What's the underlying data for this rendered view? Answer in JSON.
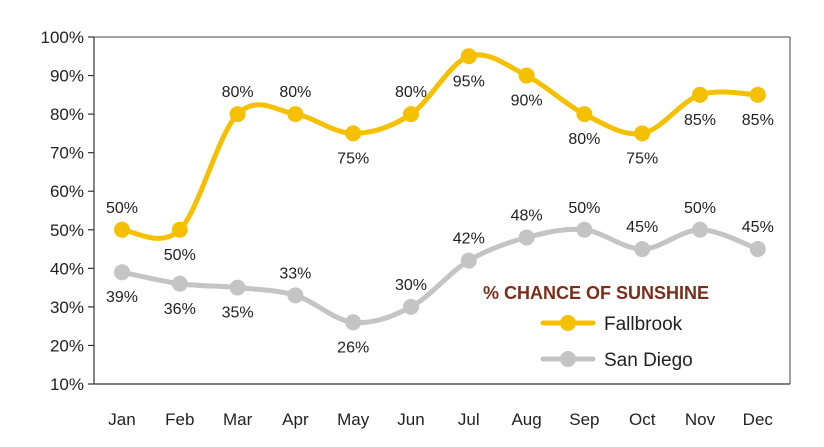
{
  "chart_data": {
    "type": "line",
    "title": "% CHANCE OF SUNSHINE",
    "title_color": "#7a2e1a",
    "categories": [
      "Jan",
      "Feb",
      "Mar",
      "Apr",
      "May",
      "Jun",
      "Jul",
      "Aug",
      "Sep",
      "Oct",
      "Nov",
      "Dec"
    ],
    "series": [
      {
        "name": "Fallbrook",
        "color": "#f5c000",
        "values": [
          50,
          50,
          80,
          80,
          75,
          80,
          95,
          90,
          80,
          75,
          85,
          85
        ],
        "labels": [
          "50%",
          "50%",
          "80%",
          "80%",
          "75%",
          "80%",
          "95%",
          "90%",
          "80%",
          "75%",
          "85%",
          "85%"
        ]
      },
      {
        "name": "San Diego",
        "color": "#c4c4c4",
        "values": [
          39,
          36,
          35,
          33,
          26,
          30,
          42,
          48,
          50,
          45,
          50,
          45
        ],
        "labels": [
          "39%",
          "36%",
          "35%",
          "33%",
          "26%",
          "30%",
          "42%",
          "48%",
          "50%",
          "45%",
          "50%",
          "45%"
        ]
      }
    ],
    "ylim": [
      10,
      100
    ],
    "yticks": [
      "10%",
      "20%",
      "30%",
      "40%",
      "50%",
      "60%",
      "70%",
      "80%",
      "90%",
      "100%"
    ],
    "grid": false,
    "legend_position": "bottom-right"
  }
}
